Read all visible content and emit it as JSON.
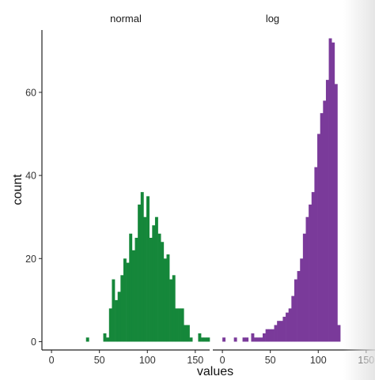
{
  "chart_data": {
    "type": "bar",
    "xlabel": "values",
    "ylabel": "count",
    "panels": [
      {
        "name": "normal",
        "color": "#15873A",
        "bin_width": 3,
        "bin_starts": [
          36,
          39,
          42,
          45,
          48,
          51,
          54,
          57,
          60,
          63,
          66,
          69,
          72,
          75,
          78,
          81,
          84,
          87,
          90,
          93,
          96,
          99,
          102,
          105,
          108,
          111,
          114,
          117,
          120,
          123,
          126,
          129,
          132,
          135,
          138,
          141,
          144,
          147,
          150,
          153,
          156,
          159,
          162
        ],
        "values": [
          1,
          0,
          0,
          0,
          0,
          0,
          2,
          1,
          8,
          15,
          10,
          12,
          16,
          20,
          19,
          26,
          22,
          25,
          33,
          36,
          30,
          35,
          25,
          28,
          30,
          26,
          24,
          20,
          21,
          15,
          16,
          8,
          8,
          8,
          4,
          4,
          1,
          0,
          0,
          2,
          1,
          1,
          1
        ],
        "xlim": [
          -10,
          165
        ],
        "xticks": [
          0,
          50,
          100,
          150
        ]
      },
      {
        "name": "log",
        "color": "#7A3A9A",
        "bin_width": 3,
        "bin_starts": [
          0,
          3,
          6,
          9,
          12,
          15,
          18,
          21,
          24,
          27,
          30,
          33,
          36,
          39,
          42,
          45,
          48,
          51,
          54,
          57,
          60,
          63,
          66,
          69,
          72,
          75,
          78,
          81,
          84,
          87,
          90,
          93,
          96,
          99,
          102,
          105,
          108,
          111,
          114,
          117,
          120
        ],
        "values": [
          1,
          0,
          0,
          0,
          1,
          0,
          0,
          1,
          1,
          0,
          2,
          1,
          1,
          1,
          2,
          3,
          3,
          3,
          4,
          5,
          5,
          6,
          7,
          8,
          11,
          15,
          17,
          20,
          26,
          30,
          33,
          36,
          42,
          50,
          55,
          58,
          63,
          73,
          72,
          62,
          4
        ],
        "xlim": [
          -10,
          165
        ],
        "xticks": [
          0,
          50,
          100,
          150
        ]
      }
    ],
    "ylim": [
      -2,
      75
    ],
    "yticks": [
      0,
      20,
      40,
      60
    ],
    "grid": false,
    "legend": "none"
  }
}
